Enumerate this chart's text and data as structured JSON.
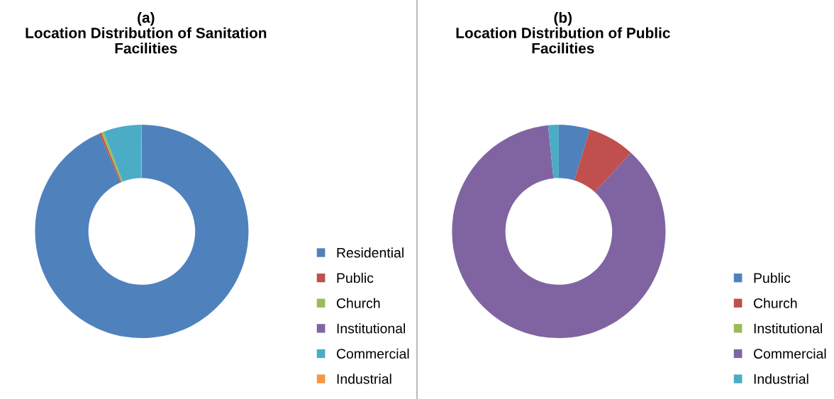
{
  "chart_data": [
    {
      "type": "donut",
      "title": "(a)\nLocation Distribution of Sanitation\nFacilities",
      "categories": [
        "Residential",
        "Public",
        "Church",
        "Institutional",
        "Commercial",
        "Industrial"
      ],
      "values": [
        93.5,
        0.3,
        0.4,
        0,
        5.7,
        0.1
      ],
      "colors": [
        "#4f81bd",
        "#c0504d",
        "#9bbb59",
        "#8064a2",
        "#4bacc6",
        "#f79646"
      ],
      "legend": "right"
    },
    {
      "type": "donut",
      "title": "(b)\nLocation Distribution of Public\nFacilities",
      "categories": [
        "Public",
        "Church",
        "Institutional",
        "Commercial",
        "Industrial"
      ],
      "values": [
        4.7,
        7.1,
        0,
        86.6,
        1.6
      ],
      "colors": [
        "#4f81bd",
        "#c0504d",
        "#9bbb59",
        "#8064a2",
        "#4bacc6"
      ],
      "legend": "right"
    }
  ]
}
